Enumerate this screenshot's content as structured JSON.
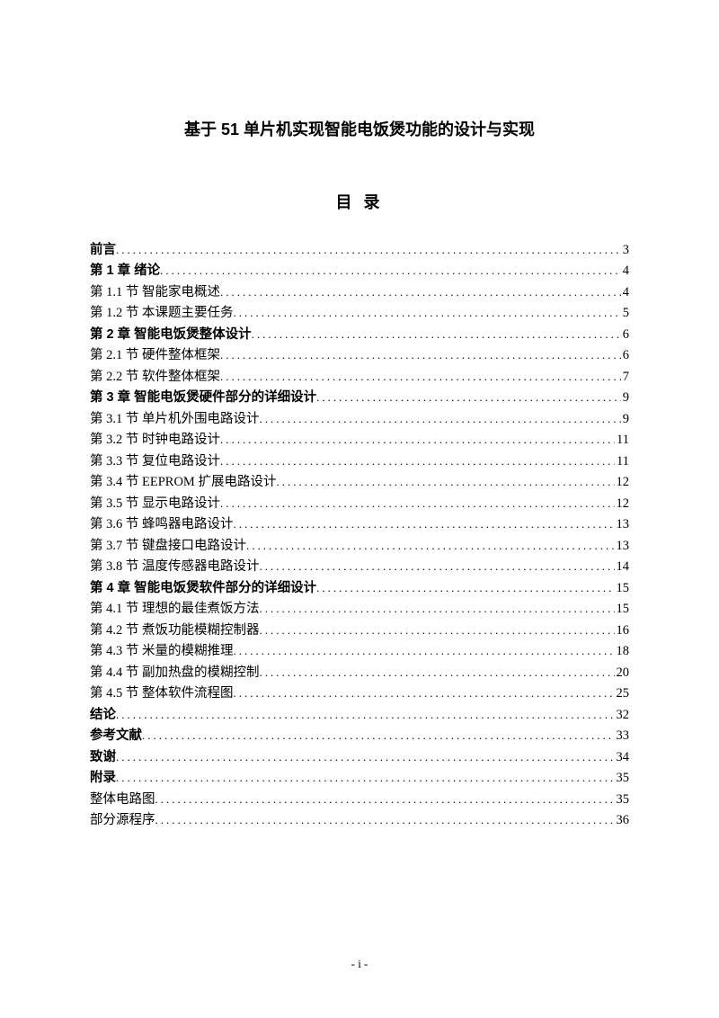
{
  "doc_title": "基于 51 单片机实现智能电饭煲功能的设计与实现",
  "toc_heading": "目 录",
  "page_footer": "- i -",
  "toc": [
    {
      "label": "前言",
      "page": "3",
      "bold": true
    },
    {
      "label": "第 1 章  绪论",
      "page": "4",
      "bold": true
    },
    {
      "label": "第 1.1 节  智能家电概述",
      "page": "4",
      "bold": false
    },
    {
      "label": "第 1.2 节  本课题主要任务",
      "page": "5",
      "bold": false
    },
    {
      "label": "第 2 章  智能电饭煲整体设计",
      "page": "6",
      "bold": true
    },
    {
      "label": "第 2.1 节  硬件整体框架",
      "page": "6",
      "bold": false
    },
    {
      "label": "第 2.2 节  软件整体框架",
      "page": "7",
      "bold": false
    },
    {
      "label": "第 3 章  智能电饭煲硬件部分的详细设计",
      "page": "9",
      "bold": true
    },
    {
      "label": "第 3.1 节  单片机外围电路设计",
      "page": "9",
      "bold": false
    },
    {
      "label": "第 3.2 节  时钟电路设计",
      "page": "11",
      "bold": false
    },
    {
      "label": "第 3.3 节  复位电路设计",
      "page": "11",
      "bold": false
    },
    {
      "label": "第 3.4 节 EEPROM 扩展电路设计",
      "page": "12",
      "bold": false
    },
    {
      "label": "第 3.5 节  显示电路设计",
      "page": "12",
      "bold": false
    },
    {
      "label": "第 3.6 节  蜂鸣器电路设计",
      "page": "13",
      "bold": false
    },
    {
      "label": "第 3.7 节  键盘接口电路设计",
      "page": "13",
      "bold": false
    },
    {
      "label": "第 3.8 节  温度传感器电路设计",
      "page": "14",
      "bold": false
    },
    {
      "label": "第 4 章  智能电饭煲软件部分的详细设计",
      "page": "15",
      "bold": true
    },
    {
      "label": "第 4.1 节  理想的最佳煮饭方法",
      "page": "15",
      "bold": false
    },
    {
      "label": "第 4.2 节  煮饭功能模糊控制器",
      "page": "16",
      "bold": false
    },
    {
      "label": "第 4.3 节  米量的模糊推理",
      "page": "18",
      "bold": false
    },
    {
      "label": "第 4.4 节  副加热盘的模糊控制",
      "page": "20",
      "bold": false
    },
    {
      "label": "第 4.5 节  整体软件流程图",
      "page": "25",
      "bold": false
    },
    {
      "label": "结论",
      "page": "32",
      "bold": true
    },
    {
      "label": "参考文献",
      "page": "33",
      "bold": true
    },
    {
      "label": "致谢",
      "page": "34",
      "bold": true
    },
    {
      "label": "附录",
      "page": "35",
      "bold": true
    },
    {
      "label": "整体电路图",
      "page": "35",
      "bold": false
    },
    {
      "label": "部分源程序",
      "page": "36",
      "bold": false
    }
  ]
}
